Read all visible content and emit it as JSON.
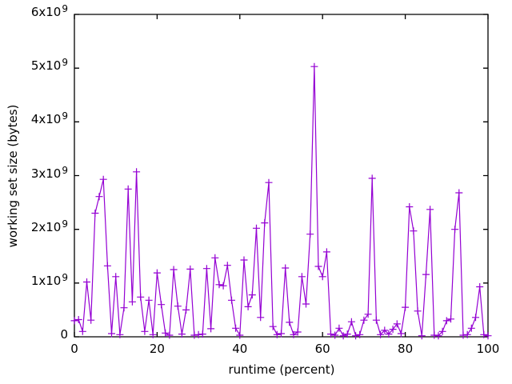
{
  "figure": {
    "background_color": "#ffffff",
    "axis_color": "#000000",
    "text_color": "#000000"
  },
  "chart_data": {
    "type": "line",
    "title": "",
    "xlabel": "runtime (percent)",
    "ylabel": "working set size (bytes)",
    "legend": "none",
    "grid": false,
    "marker": "plus",
    "line_color": "#9400D3",
    "xlim": [
      0,
      100
    ],
    "ylim": [
      0,
      6000000000.0
    ],
    "x_ticks": [
      0,
      20,
      40,
      60,
      80,
      100
    ],
    "x_tick_labels": [
      "0",
      "20",
      "40",
      "60",
      "80",
      "100"
    ],
    "y_ticks": [
      0,
      1000000000.0,
      2000000000.0,
      3000000000.0,
      4000000000.0,
      5000000000.0,
      6000000000.0
    ],
    "y_tick_labels": [
      "0",
      "1x10^9",
      "2x10^9",
      "3x10^9",
      "4x10^9",
      "5x10^9",
      "6x10^9"
    ],
    "y_unit": "bytes",
    "series": [
      {
        "name": "working set size",
        "x": [
          0,
          1,
          2,
          3,
          4,
          5,
          6,
          7,
          8,
          9,
          10,
          11,
          12,
          13,
          14,
          15,
          16,
          17,
          18,
          19,
          20,
          21,
          22,
          23,
          24,
          25,
          26,
          27,
          28,
          29,
          30,
          31,
          32,
          33,
          34,
          35,
          36,
          37,
          38,
          39,
          40,
          41,
          42,
          43,
          44,
          45,
          46,
          47,
          48,
          49,
          50,
          51,
          52,
          53,
          54,
          55,
          56,
          57,
          58,
          59,
          60,
          61,
          62,
          63,
          64,
          65,
          66,
          67,
          68,
          69,
          70,
          71,
          72,
          73,
          74,
          75,
          76,
          77,
          78,
          79,
          80,
          81,
          82,
          83,
          84,
          85,
          86,
          87,
          88,
          89,
          90,
          91,
          92,
          93,
          94,
          95,
          96,
          97,
          98,
          99,
          100
        ],
        "y": [
          300000000.0,
          320000000.0,
          100000000.0,
          1020000000.0,
          310000000.0,
          2300000000.0,
          2610000000.0,
          2930000000.0,
          1320000000.0,
          60000000.0,
          1120000000.0,
          40000000.0,
          540000000.0,
          2750000000.0,
          650000000.0,
          3070000000.0,
          740000000.0,
          100000000.0,
          680000000.0,
          40000000.0,
          1190000000.0,
          600000000.0,
          70000000.0,
          30000000.0,
          1250000000.0,
          570000000.0,
          50000000.0,
          500000000.0,
          1260000000.0,
          30000000.0,
          40000000.0,
          50000000.0,
          1270000000.0,
          150000000.0,
          1470000000.0,
          970000000.0,
          950000000.0,
          1330000000.0,
          680000000.0,
          160000000.0,
          30000000.0,
          1430000000.0,
          560000000.0,
          780000000.0,
          2020000000.0,
          360000000.0,
          2120000000.0,
          2870000000.0,
          190000000.0,
          40000000.0,
          60000000.0,
          1280000000.0,
          270000000.0,
          40000000.0,
          90000000.0,
          1120000000.0,
          610000000.0,
          1910000000.0,
          5030000000.0,
          1310000000.0,
          1120000000.0,
          1580000000.0,
          50000000.0,
          30000000.0,
          160000000.0,
          20000000.0,
          50000000.0,
          280000000.0,
          20000000.0,
          40000000.0,
          310000000.0,
          420000000.0,
          2950000000.0,
          310000000.0,
          40000000.0,
          120000000.0,
          50000000.0,
          140000000.0,
          240000000.0,
          60000000.0,
          550000000.0,
          2420000000.0,
          1970000000.0,
          480000000.0,
          20000000.0,
          1160000000.0,
          2370000000.0,
          30000000.0,
          20000000.0,
          100000000.0,
          300000000.0,
          330000000.0,
          2000000000.0,
          2680000000.0,
          30000000.0,
          40000000.0,
          160000000.0,
          360000000.0,
          930000000.0,
          40000000.0,
          20000000.0
        ]
      }
    ]
  }
}
